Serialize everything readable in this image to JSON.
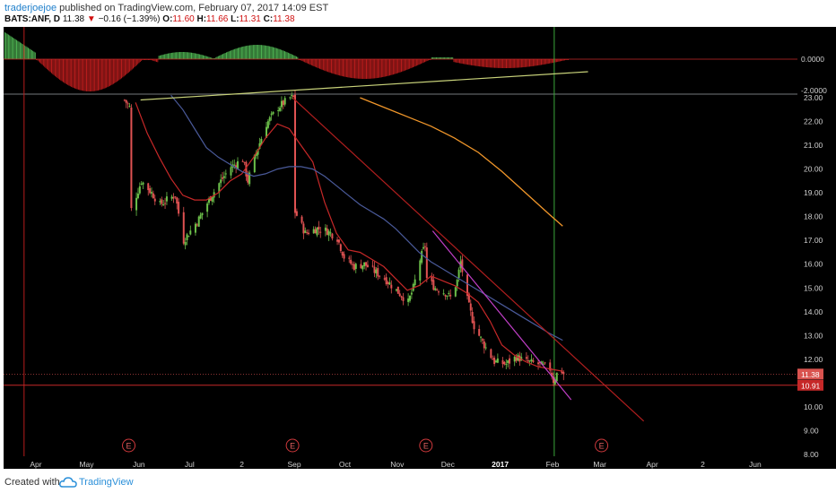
{
  "header": {
    "author": "traderjoejoe",
    "published": "published on TradingView.com, February 07, 2017 14:09 EST",
    "symbol": "BATS:ANF, D",
    "last": "11.38",
    "change": "−0.16 (−1.39%)",
    "o_label": "O:",
    "o_value": "11.60",
    "h_label": "H:",
    "h_value": "11.66",
    "l_label": "L:",
    "l_value": "11.31",
    "c_label": "C:",
    "c_value": "11.38"
  },
  "footer": {
    "created_with": "Created with",
    "brand": "TradingView",
    "logo_icon": "tradingview-cloud-icon"
  },
  "colors": {
    "background": "#000000",
    "up": "#6cc04a",
    "down": "#e05252",
    "osc_up": "#4caf50",
    "osc_down": "#b71c1c",
    "sma_fast": "#c62828",
    "sma_slow": "#4a5a9a",
    "sma_long": "#f0962a",
    "trend_red": "#b01e1e",
    "trend_magenta": "#c23fc8",
    "trend_yellow": "#c8d27a",
    "vline_red": "#b71c1c",
    "vline_green": "#3aa63a",
    "hline_support": "#c62828"
  },
  "chart_data": {
    "type": "candlestick",
    "symbol": "BATS:ANF",
    "interval": "D",
    "ylim": [
      7.8,
      23.2
    ],
    "y_ticks": [
      "23.00",
      "22.00",
      "21.00",
      "20.00",
      "19.00",
      "18.00",
      "17.00",
      "16.00",
      "15.00",
      "14.00",
      "13.00",
      "12.00",
      "11.00",
      "10.00",
      "9.00",
      "8.00"
    ],
    "x_ticks": [
      "Apr",
      "May",
      "Jun",
      "Jul",
      "2",
      "Sep",
      "Oct",
      "Nov",
      "Dec",
      "2017",
      "Feb",
      "Mar",
      "Apr",
      "2",
      "Jun"
    ],
    "last_price_label": "11.38",
    "support_label": "10.91",
    "support_price": 10.91,
    "earnings_marker": "E",
    "earnings_dates": [
      "2016-05-26",
      "2016-08-31",
      "2016-11-18",
      "2017-03-02"
    ],
    "oscillator": {
      "ticks": [
        "0.0000",
        "-2.0000"
      ],
      "type": "histogram"
    },
    "price_path": [
      [
        "2016-05-23",
        22.9
      ],
      [
        "2016-05-26",
        22.6
      ],
      [
        "2016-05-27",
        18.3
      ],
      [
        "2016-06-02",
        19.5
      ],
      [
        "2016-06-08",
        19.0
      ],
      [
        "2016-06-13",
        18.5
      ],
      [
        "2016-06-17",
        18.7
      ],
      [
        "2016-06-22",
        18.9
      ],
      [
        "2016-06-27",
        17.0
      ],
      [
        "2016-06-30",
        17.3
      ],
      [
        "2016-07-06",
        17.9
      ],
      [
        "2016-07-12",
        18.7
      ],
      [
        "2016-07-18",
        19.4
      ],
      [
        "2016-07-25",
        20.1
      ],
      [
        "2016-08-01",
        20.4
      ],
      [
        "2016-08-04",
        19.5
      ],
      [
        "2016-08-09",
        20.7
      ],
      [
        "2016-08-15",
        21.9
      ],
      [
        "2016-08-22",
        22.6
      ],
      [
        "2016-08-29",
        23.0
      ],
      [
        "2016-08-31",
        23.0
      ],
      [
        "2016-09-01",
        18.2
      ],
      [
        "2016-09-07",
        17.3
      ],
      [
        "2016-09-14",
        17.5
      ],
      [
        "2016-09-20",
        17.4
      ],
      [
        "2016-09-26",
        17.1
      ],
      [
        "2016-09-30",
        16.3
      ],
      [
        "2016-10-06",
        15.9
      ],
      [
        "2016-10-12",
        16.0
      ],
      [
        "2016-10-18",
        15.7
      ],
      [
        "2016-10-24",
        15.4
      ],
      [
        "2016-10-31",
        14.9
      ],
      [
        "2016-11-07",
        14.4
      ],
      [
        "2016-11-10",
        15.0
      ],
      [
        "2016-11-14",
        16.2
      ],
      [
        "2016-11-17",
        16.8
      ],
      [
        "2016-11-18",
        15.4
      ],
      [
        "2016-11-23",
        15.0
      ],
      [
        "2016-11-29",
        14.8
      ],
      [
        "2016-12-02",
        14.6
      ],
      [
        "2016-12-06",
        15.3
      ],
      [
        "2016-12-08",
        16.1
      ],
      [
        "2016-12-12",
        14.5
      ],
      [
        "2016-12-16",
        13.4
      ],
      [
        "2016-12-22",
        12.6
      ],
      [
        "2016-12-28",
        11.9
      ],
      [
        "2017-01-04",
        11.8
      ],
      [
        "2017-01-10",
        12.1
      ],
      [
        "2017-01-16",
        11.9
      ],
      [
        "2017-01-23",
        11.8
      ],
      [
        "2017-01-30",
        11.6
      ],
      [
        "2017-02-01",
        11.1
      ],
      [
        "2017-02-03",
        11.4
      ],
      [
        "2017-02-06",
        11.5
      ],
      [
        "2017-02-07",
        11.38
      ]
    ],
    "sma_fast": [
      [
        "2016-05-30",
        22.8
      ],
      [
        "2016-06-06",
        21.5
      ],
      [
        "2016-06-13",
        20.5
      ],
      [
        "2016-06-20",
        19.6
      ],
      [
        "2016-06-27",
        18.9
      ],
      [
        "2016-07-04",
        18.7
      ],
      [
        "2016-07-11",
        18.7
      ],
      [
        "2016-07-18",
        19.0
      ],
      [
        "2016-07-25",
        19.5
      ],
      [
        "2016-08-01",
        19.8
      ],
      [
        "2016-08-08",
        20.5
      ],
      [
        "2016-08-15",
        21.3
      ],
      [
        "2016-08-22",
        21.9
      ],
      [
        "2016-08-29",
        21.7
      ],
      [
        "2016-09-05",
        21.0
      ],
      [
        "2016-09-12",
        20.3
      ],
      [
        "2016-09-19",
        18.6
      ],
      [
        "2016-09-26",
        17.3
      ],
      [
        "2016-10-03",
        16.6
      ],
      [
        "2016-10-10",
        16.5
      ],
      [
        "2016-10-17",
        16.2
      ],
      [
        "2016-10-24",
        15.9
      ],
      [
        "2016-10-31",
        15.4
      ],
      [
        "2016-11-07",
        14.9
      ],
      [
        "2016-11-14",
        15.1
      ],
      [
        "2016-11-21",
        15.5
      ],
      [
        "2016-11-28",
        15.3
      ],
      [
        "2016-12-05",
        15.1
      ],
      [
        "2016-12-12",
        14.8
      ],
      [
        "2016-12-19",
        14.4
      ],
      [
        "2016-12-26",
        13.6
      ],
      [
        "2017-01-02",
        12.6
      ],
      [
        "2017-01-09",
        12.2
      ],
      [
        "2017-01-16",
        11.9
      ],
      [
        "2017-01-23",
        11.7
      ],
      [
        "2017-01-30",
        11.6
      ],
      [
        "2017-02-07",
        11.5
      ]
    ],
    "sma_slow": [
      [
        "2016-06-20",
        23.1
      ],
      [
        "2016-06-27",
        22.5
      ],
      [
        "2016-07-04",
        21.7
      ],
      [
        "2016-07-11",
        20.9
      ],
      [
        "2016-07-18",
        20.5
      ],
      [
        "2016-07-25",
        20.2
      ],
      [
        "2016-08-01",
        19.9
      ],
      [
        "2016-08-08",
        19.7
      ],
      [
        "2016-08-15",
        19.8
      ],
      [
        "2016-08-22",
        20.0
      ],
      [
        "2016-08-29",
        20.1
      ],
      [
        "2016-09-05",
        20.1
      ],
      [
        "2016-09-12",
        20.0
      ],
      [
        "2016-09-19",
        19.7
      ],
      [
        "2016-09-26",
        19.3
      ],
      [
        "2016-10-03",
        18.9
      ],
      [
        "2016-10-10",
        18.5
      ],
      [
        "2016-10-17",
        18.2
      ],
      [
        "2016-10-24",
        17.9
      ],
      [
        "2016-10-31",
        17.5
      ],
      [
        "2016-11-07",
        17.0
      ],
      [
        "2016-11-14",
        16.5
      ],
      [
        "2016-11-21",
        16.1
      ],
      [
        "2016-11-28",
        15.8
      ],
      [
        "2016-12-05",
        15.5
      ],
      [
        "2016-12-12",
        15.2
      ],
      [
        "2016-12-19",
        14.9
      ],
      [
        "2016-12-26",
        14.6
      ],
      [
        "2017-01-02",
        14.3
      ],
      [
        "2017-01-09",
        14.0
      ],
      [
        "2017-01-16",
        13.7
      ],
      [
        "2017-01-23",
        13.4
      ],
      [
        "2017-01-30",
        13.1
      ],
      [
        "2017-02-07",
        12.8
      ]
    ],
    "sma_long": [
      [
        "2016-10-10",
        23.0
      ],
      [
        "2016-10-24",
        22.6
      ],
      [
        "2016-11-07",
        22.2
      ],
      [
        "2016-11-21",
        21.8
      ],
      [
        "2016-12-05",
        21.3
      ],
      [
        "2016-12-19",
        20.7
      ],
      [
        "2017-01-02",
        19.9
      ],
      [
        "2017-01-16",
        19.0
      ],
      [
        "2017-01-30",
        18.1
      ],
      [
        "2017-02-07",
        17.6
      ]
    ],
    "trendlines": [
      {
        "name": "descending-resistance",
        "color": "trend_red",
        "from": [
          "2016-08-31",
          23.0
        ],
        "to": [
          "2017-03-27",
          9.4
        ]
      },
      {
        "name": "steep-resistance",
        "color": "trend_magenta",
        "from": [
          "2016-11-22",
          17.4
        ],
        "to": [
          "2017-02-12",
          10.3
        ]
      },
      {
        "name": "oscillator-trend",
        "color": "trend_yellow",
        "from": [
          "2016-06-02",
          -2.6
        ],
        "to": [
          "2017-02-22",
          -0.8
        ]
      }
    ],
    "vertical_lines": [
      {
        "date": "2016-03-25",
        "color": "vline_red"
      },
      {
        "date": "2017-02-02",
        "color": "vline_green"
      }
    ]
  }
}
